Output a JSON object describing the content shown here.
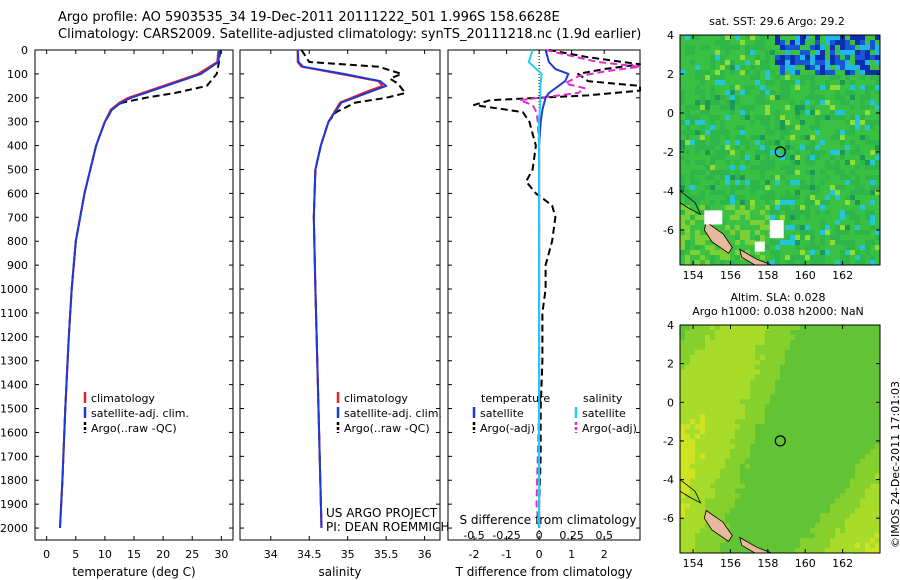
{
  "header": {
    "line1": "Argo profile: AO 5903535_34 19-Dec-2011 20111222_501 1.996S 158.6628E",
    "line2": "Climatology: CARS2009. Satellite-adjusted climatology: synTS_20111218.nc (1.9d earlier)"
  },
  "footer_credit": "©IMOS 24-Dec-2011 17:01:03",
  "colors": {
    "clim": "#e8202a",
    "sat": "#1e3ad6",
    "argo": "#000000",
    "sat_s": "#1fd3f0",
    "argo_s": "#e02ad0"
  },
  "chart_data": [
    {
      "type": "line",
      "title": "",
      "xlabel": "temperature (deg C)",
      "ylabel": "",
      "xlim": [
        -2,
        32
      ],
      "ylim": [
        0,
        2050
      ],
      "xticks": [
        0,
        5,
        10,
        15,
        20,
        25,
        30
      ],
      "yticks": [
        0,
        100,
        200,
        300,
        400,
        500,
        600,
        700,
        800,
        900,
        1000,
        1100,
        1200,
        1300,
        1400,
        1500,
        1600,
        1700,
        1800,
        1900,
        2000
      ],
      "legend": [
        "climatology",
        "satellite-adj. clim.",
        "Argo(..raw -QC)"
      ],
      "legend_position": "lower-right",
      "series": [
        {
          "name": "climatology",
          "depth": [
            0,
            50,
            100,
            150,
            200,
            220,
            250,
            300,
            400,
            500,
            600,
            800,
            1000,
            1200,
            1500,
            1800,
            2000
          ],
          "values": [
            29.5,
            29.3,
            26,
            20,
            14,
            12.5,
            11,
            10,
            8.5,
            7.5,
            6.5,
            5,
            4.3,
            3.8,
            3.2,
            2.7,
            2.3
          ]
        },
        {
          "name": "satellite-adj. clim.",
          "depth": [
            0,
            50,
            100,
            150,
            200,
            220,
            250,
            300,
            400,
            500,
            600,
            800,
            1000,
            1200,
            1500,
            1800,
            2000
          ],
          "values": [
            29.7,
            29.5,
            26.5,
            20.5,
            14.5,
            12.8,
            11.2,
            10,
            8.5,
            7.5,
            6.5,
            5,
            4.3,
            3.8,
            3.2,
            2.7,
            2.3
          ]
        },
        {
          "name": "Argo(..raw -QC)",
          "depth": [
            0,
            50,
            100,
            150,
            180,
            200,
            220,
            240,
            300,
            400,
            500,
            600,
            800,
            1000,
            1200,
            1500,
            1800,
            2000
          ],
          "values": [
            29.8,
            29.6,
            29.2,
            27.5,
            22,
            17,
            13,
            11.5,
            10,
            8.5,
            7.5,
            6.5,
            5,
            4.3,
            3.8,
            3.2,
            2.7,
            2.3
          ]
        }
      ]
    },
    {
      "type": "line",
      "xlabel": "salinity",
      "xlim": [
        33.6,
        36.2
      ],
      "ylim": [
        0,
        2050
      ],
      "xticks": [
        34,
        34.5,
        35,
        35.5,
        36
      ],
      "legend": [
        "climatology",
        "satellite-adj. clim.",
        "Argo(..raw -QC)"
      ],
      "legend_position": "lower-right",
      "annotation_line1": "US ARGO PROJECT",
      "annotation_line2": "PI: DEAN ROEMMICH",
      "series": [
        {
          "name": "climatology",
          "depth": [
            0,
            50,
            70,
            100,
            130,
            150,
            180,
            220,
            300,
            400,
            500,
            700,
            1000,
            1500,
            2000
          ],
          "values": [
            34.35,
            34.35,
            34.4,
            34.9,
            35.4,
            35.45,
            35.2,
            34.9,
            34.75,
            34.65,
            34.58,
            34.56,
            34.58,
            34.62,
            34.66
          ]
        },
        {
          "name": "satellite-adj. clim.",
          "depth": [
            0,
            50,
            70,
            100,
            130,
            150,
            180,
            220,
            300,
            400,
            500,
            700,
            1000,
            1500,
            2000
          ],
          "values": [
            34.35,
            34.36,
            34.42,
            34.95,
            35.42,
            35.5,
            35.25,
            34.92,
            34.75,
            34.65,
            34.58,
            34.56,
            34.58,
            34.62,
            34.66
          ]
        },
        {
          "name": "Argo(..raw -QC)",
          "depth": [
            0,
            50,
            70,
            100,
            120,
            140,
            160,
            180,
            200,
            220,
            260,
            300,
            400,
            500,
            700,
            1000,
            1500,
            2000
          ],
          "values": [
            34.4,
            34.5,
            35.4,
            35.7,
            35.55,
            35.65,
            35.7,
            35.75,
            35.5,
            35.1,
            34.85,
            34.75,
            34.65,
            34.58,
            34.56,
            34.58,
            34.62,
            34.66
          ]
        }
      ]
    },
    {
      "type": "line",
      "xlabel": "T difference from climatology",
      "xlabel_top": "S difference from climatology",
      "xlim": [
        -2.8,
        3.1
      ],
      "xlim_top": [
        -0.7,
        0.775
      ],
      "ylim": [
        0,
        2050
      ],
      "xticks": [
        -2,
        -1,
        0,
        1,
        2
      ],
      "xticks_top": [
        -0.5,
        -0.25,
        0,
        0.25,
        0.5
      ],
      "legend_title_t": "temperature",
      "legend_title_s": "salinity",
      "legend": [
        "satellite",
        "Argo(-adj)",
        "satellite",
        "Argo(-adj)"
      ],
      "legend_position": "lower-right",
      "series": [
        {
          "name": "T satellite",
          "depth": [
            0,
            50,
            80,
            100,
            130,
            150,
            180,
            200,
            250,
            300,
            400,
            500,
            700,
            1000,
            1500,
            2000
          ],
          "values": [
            0.2,
            0.3,
            0.5,
            0.9,
            0.8,
            0.6,
            0.3,
            0.2,
            0.1,
            0.05,
            0,
            0,
            0,
            0,
            0,
            0
          ]
        },
        {
          "name": "T Argo(-adj)",
          "depth": [
            0,
            30,
            60,
            80,
            100,
            130,
            150,
            170,
            190,
            210,
            230,
            260,
            300,
            350,
            400,
            500,
            550,
            600,
            650,
            700,
            800,
            900,
            1000,
            1100,
            1300,
            1500,
            1700,
            1900,
            2000
          ],
          "values": [
            0.3,
            1.5,
            3.5,
            2,
            1.2,
            1.5,
            3.2,
            3.5,
            1.5,
            -1.5,
            -2,
            -0.5,
            -0.3,
            -0.2,
            -0.1,
            -0.2,
            -0.4,
            -0.1,
            0.4,
            0.5,
            0.4,
            0.2,
            0.2,
            0.1,
            0.1,
            0.05,
            0.05,
            0,
            0
          ]
        },
        {
          "name": "S satellite",
          "depth": [
            0,
            50,
            80,
            100,
            150,
            200,
            300,
            500,
            800,
            1000,
            1500,
            2000
          ],
          "values": [
            -0.05,
            -0.08,
            -0.02,
            0.02,
            0.01,
            0.01,
            0,
            0,
            0,
            0,
            0,
            0
          ]
        },
        {
          "name": "S Argo(-adj)",
          "depth": [
            0,
            50,
            70,
            90,
            110,
            140,
            160,
            180,
            210,
            230,
            260,
            300,
            400,
            600,
            1000,
            1500,
            1900,
            2000
          ],
          "values": [
            0.05,
            0.45,
            0.78,
            0.5,
            0.3,
            0.2,
            0.35,
            0.3,
            -0.15,
            -0.05,
            -0.02,
            -0.01,
            0,
            0,
            0,
            0,
            -0.02,
            0
          ]
        }
      ]
    }
  ],
  "maps": [
    {
      "type": "heatmap",
      "title_line1": "sat. SST: 29.6 Argo: 29.2",
      "title_line2": "",
      "xticks": [
        154,
        156,
        158,
        160,
        162
      ],
      "yticks": [
        4,
        2,
        0,
        -2,
        -4,
        -6
      ],
      "xlim": [
        153.3,
        164
      ],
      "ylim": [
        -7.8,
        4
      ],
      "marker": {
        "lon": 158.6628,
        "lat": -1.996
      }
    },
    {
      "type": "heatmap",
      "title_line1": "Altim. SLA: 0.028",
      "title_line2": "Argo h1000: 0.038 h2000: NaN",
      "xticks": [
        154,
        156,
        158,
        160,
        162
      ],
      "yticks": [
        4,
        2,
        0,
        -2,
        -4,
        -6
      ],
      "xlim": [
        153.3,
        164
      ],
      "ylim": [
        -7.8,
        4
      ],
      "marker": {
        "lon": 158.6628,
        "lat": -1.996
      }
    }
  ]
}
